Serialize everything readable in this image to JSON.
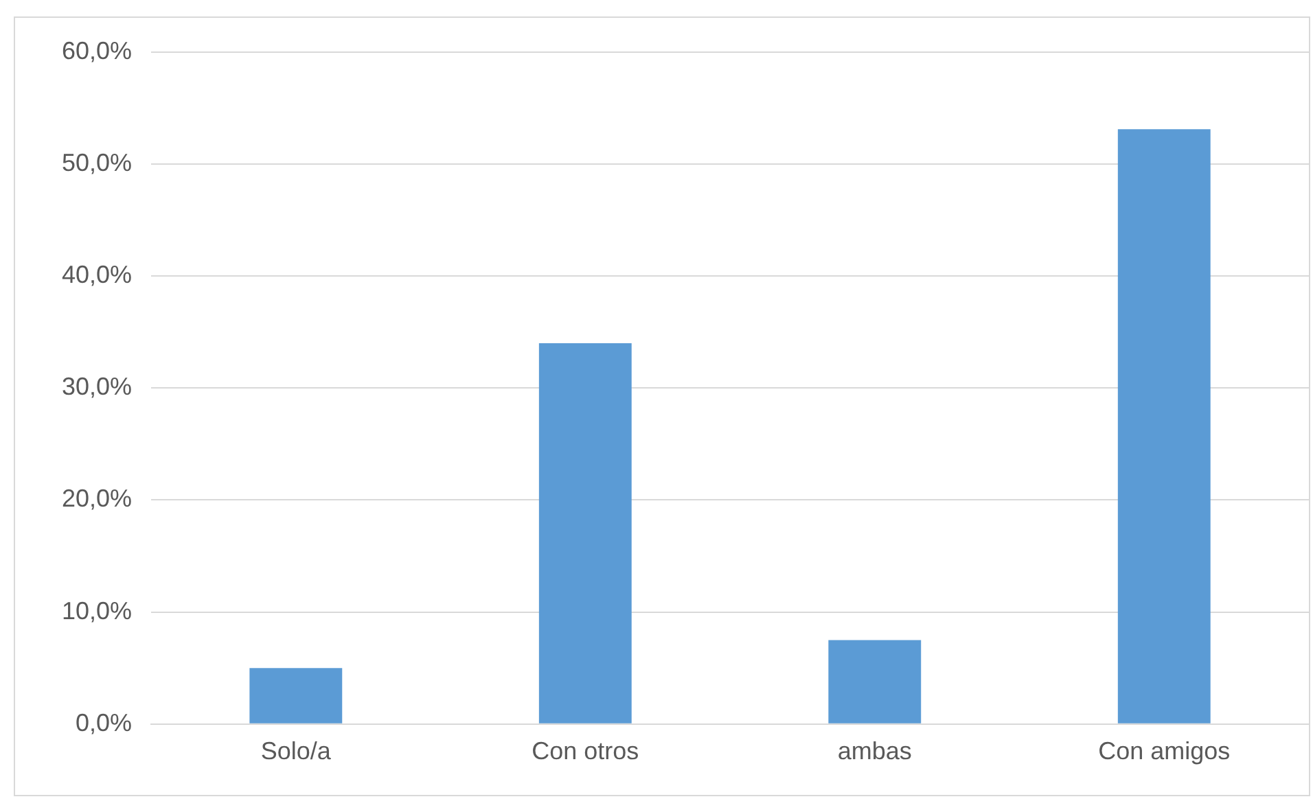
{
  "chart_data": {
    "type": "bar",
    "categories": [
      "Solo/a",
      "Con otros",
      "ambas",
      "Con amigos"
    ],
    "values": [
      5.0,
      34.0,
      7.5,
      53.1
    ],
    "color": "#5b9bd5",
    "ylim": [
      0,
      60
    ],
    "yticks": [
      {
        "value": 0,
        "label": "0,0%"
      },
      {
        "value": 10,
        "label": "10,0%"
      },
      {
        "value": 20,
        "label": "20,0%"
      },
      {
        "value": 30,
        "label": "30,0%"
      },
      {
        "value": 40,
        "label": "40,0%"
      },
      {
        "value": 50,
        "label": "50,0%"
      },
      {
        "value": 60,
        "label": "60,0%"
      }
    ],
    "grid": "y",
    "legend": false
  }
}
